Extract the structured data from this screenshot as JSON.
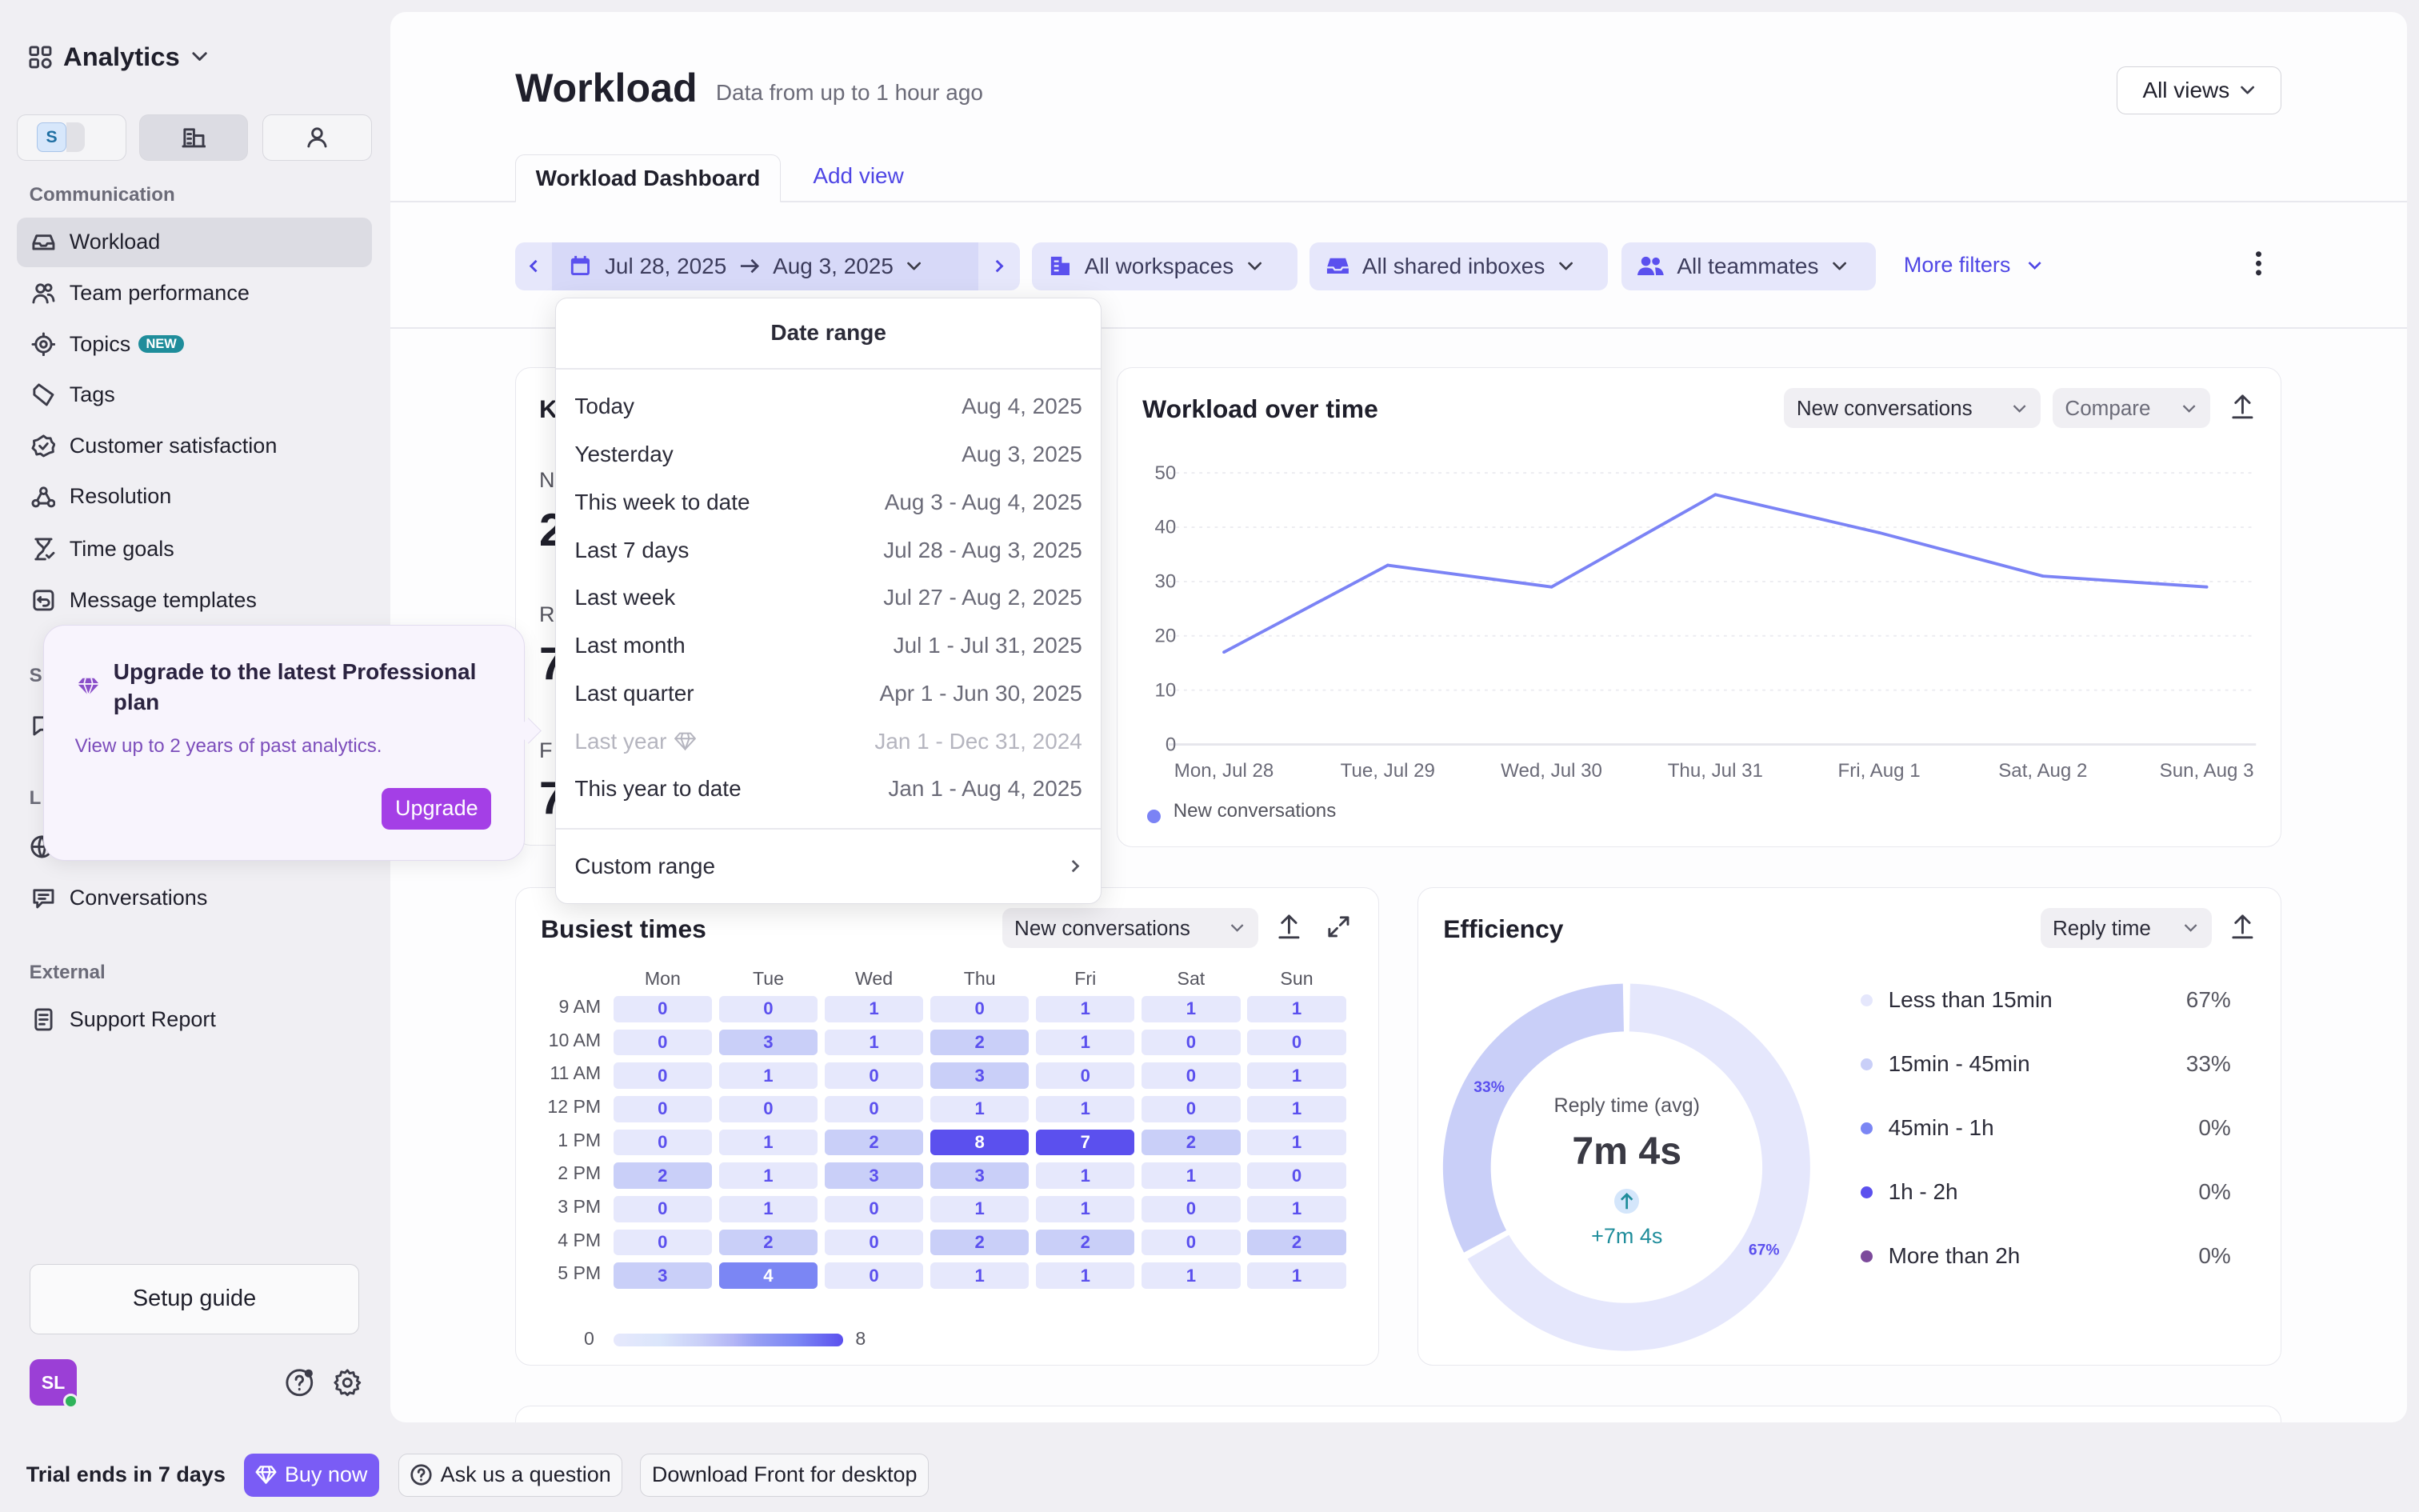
{
  "sidebar": {
    "app_title": "Analytics",
    "switcher_badge": "S",
    "section_communication": "Communication",
    "items": [
      {
        "label": "Workload",
        "icon": "inbox-icon",
        "selected": true
      },
      {
        "label": "Team performance",
        "icon": "users-icon"
      },
      {
        "label": "Topics",
        "icon": "target-icon",
        "badge": "NEW"
      },
      {
        "label": "Tags",
        "icon": "tag-icon"
      },
      {
        "label": "Customer satisfaction",
        "icon": "badge-check-icon"
      },
      {
        "label": "Resolution",
        "icon": "resolution-icon"
      },
      {
        "label": "Time goals",
        "icon": "hourglass-icon"
      },
      {
        "label": "Message templates",
        "icon": "template-icon"
      }
    ],
    "partial_section_1": "S",
    "partial_section_2": "L",
    "conversations": "Conversations",
    "section_external": "External",
    "external_items": [
      {
        "label": "Support Report",
        "icon": "report-icon"
      }
    ],
    "setup_guide": "Setup guide",
    "avatar_initials": "SL"
  },
  "upgrade_popover": {
    "title": "Upgrade to the latest Professional plan",
    "text": "View up to 2 years of past analytics.",
    "button": "Upgrade"
  },
  "bottom_bar": {
    "trial": "Trial ends in 7 days",
    "buy_now": "Buy now",
    "ask": "Ask us a question",
    "download": "Download Front for desktop"
  },
  "header": {
    "title": "Workload",
    "subtitle": "Data from up to 1 hour ago",
    "views_button": "All views"
  },
  "tabs": [
    {
      "label": "Workload Dashboard",
      "active": true
    }
  ],
  "add_view": "Add view",
  "filters": {
    "date_start": "Jul 28, 2025",
    "date_end": "Aug 3, 2025",
    "workspaces": "All workspaces",
    "inboxes": "All shared inboxes",
    "teammates": "All teammates",
    "more_filters": "More filters"
  },
  "date_dropdown": {
    "title": "Date range",
    "options": [
      {
        "label": "Today",
        "range": "Aug 4, 2025"
      },
      {
        "label": "Yesterday",
        "range": "Aug 3, 2025"
      },
      {
        "label": "This week to date",
        "range": "Aug 3 - Aug 4, 2025"
      },
      {
        "label": "Last 7 days",
        "range": "Jul 28 - Aug 3, 2025"
      },
      {
        "label": "Last week",
        "range": "Jul 27 - Aug 2, 2025"
      },
      {
        "label": "Last month",
        "range": "Jul 1 - Jul 31, 2025"
      },
      {
        "label": "Last quarter",
        "range": "Apr 1 - Jun 30, 2025"
      },
      {
        "label": "Last year",
        "range": "Jan 1 - Dec 31, 2024",
        "locked": true
      },
      {
        "label": "This year to date",
        "range": "Jan 1 - Aug 4, 2025"
      }
    ],
    "custom": "Custom range"
  },
  "partial_card": {
    "fragments": [
      "K",
      "N",
      "2",
      "R",
      "7",
      "F",
      "7"
    ]
  },
  "cards": {
    "workload_over_time": {
      "title": "Workload over time",
      "metric_select": "New conversations",
      "compare_select": "Compare"
    },
    "busiest_times": {
      "title": "Busiest times",
      "metric_select": "New conversations"
    },
    "efficiency": {
      "title": "Efficiency",
      "metric_select": "Reply time",
      "center_label": "Reply time (avg)",
      "center_value": "7m 4s",
      "delta": "+7m 4s"
    }
  },
  "colors": {
    "accent": "#5b50ee",
    "link": "#4f46e5",
    "upgrade": "#a43fe6",
    "buy_now": "#7a5cf5",
    "delta": "#1f8d9b"
  },
  "chart_data": [
    {
      "type": "line",
      "categories": [
        "Mon, Jul 28",
        "Tue, Jul 29",
        "Wed, Jul 30",
        "Thu, Jul 31",
        "Fri, Aug 1",
        "Sat, Aug 2",
        "Sun, Aug 3"
      ],
      "series": [
        {
          "name": "New conversations",
          "values": [
            17,
            33,
            29,
            46,
            39,
            31,
            29
          ],
          "color": "#7b83f5"
        }
      ],
      "ylim": [
        0,
        50
      ],
      "yticks": [
        0,
        10,
        20,
        30,
        40,
        50
      ],
      "grid": true,
      "legend": "bottom-left"
    },
    {
      "type": "heatmap",
      "columns": [
        "Mon",
        "Tue",
        "Wed",
        "Thu",
        "Fri",
        "Sat",
        "Sun"
      ],
      "rows": [
        "9 AM",
        "10 AM",
        "11 AM",
        "12 PM",
        "1 PM",
        "2 PM",
        "3 PM",
        "4 PM",
        "5 PM"
      ],
      "values": [
        [
          0,
          0,
          1,
          0,
          1,
          1,
          1
        ],
        [
          0,
          3,
          1,
          2,
          1,
          0,
          0
        ],
        [
          0,
          1,
          0,
          3,
          0,
          0,
          1
        ],
        [
          0,
          0,
          0,
          1,
          1,
          0,
          1
        ],
        [
          0,
          1,
          2,
          8,
          7,
          2,
          1
        ],
        [
          2,
          1,
          3,
          3,
          1,
          1,
          0
        ],
        [
          0,
          1,
          0,
          1,
          1,
          0,
          1
        ],
        [
          0,
          2,
          0,
          2,
          2,
          0,
          2
        ],
        [
          3,
          4,
          0,
          1,
          1,
          1,
          1
        ]
      ],
      "scale_min": 0,
      "scale_max": 8
    },
    {
      "type": "pie",
      "categories": [
        "Less than 15min",
        "15min - 45min",
        "45min - 1h",
        "1h - 2h",
        "More than 2h"
      ],
      "values": [
        67,
        33,
        0,
        0,
        0
      ],
      "labels": [
        "67%",
        "33%",
        "0%",
        "0%",
        "0%"
      ],
      "colors": [
        "#e5e7fc",
        "#c9cff8",
        "#7b86f4",
        "#5b50ee",
        "#7c4a9b"
      ]
    }
  ]
}
